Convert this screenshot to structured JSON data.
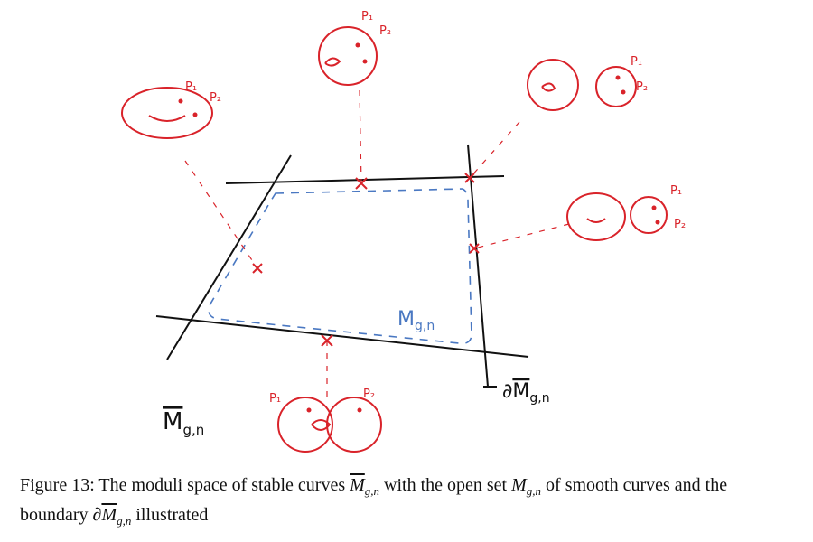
{
  "figure": {
    "closure_label": {
      "base": "M",
      "sub": "g,n"
    },
    "open_label": {
      "base": "M",
      "sub": "g,n"
    },
    "boundary_label": {
      "prefix": "∂",
      "base": "M",
      "sub": "g,n"
    },
    "curves": [
      {
        "points": [
          "P₁",
          "P₂"
        ]
      },
      {
        "points": [
          "P₁",
          "P₂"
        ]
      },
      {
        "points": [
          "P₁",
          "P₂"
        ]
      },
      {
        "points": [
          "P₁",
          "P₂"
        ]
      },
      {
        "points": [
          "P₁",
          "P₂"
        ]
      }
    ]
  },
  "caption": [
    "Figure 13:",
    "The moduli space of stable curves",
    "M",
    "g,n",
    "with the open set",
    "M",
    "g,n",
    "of smooth curves and the boundary",
    "∂",
    "M",
    "g,n",
    "illustrated"
  ]
}
